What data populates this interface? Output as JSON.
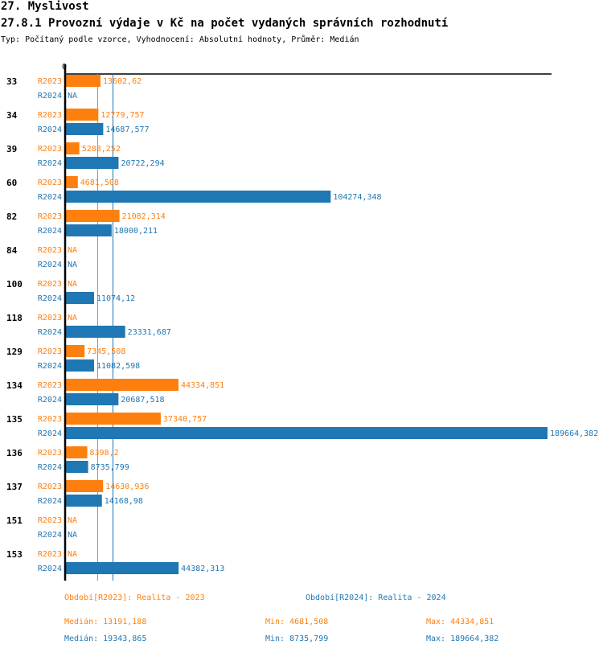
{
  "header": {
    "section_title": "27. Myslivost",
    "chart_title": "27.8.1 Provozní výdaje v Kč na počet vydaných správních rozhodnutí",
    "subtitle": "Typ: Počítaný podle vzorce, Vyhodnocení: Absolutní hodnoty, Průměr: Medián"
  },
  "colors": {
    "R2023": "#ff7f0e",
    "R2024": "#1f77b4",
    "axis": "#000000"
  },
  "chart_data": {
    "type": "bar",
    "orientation": "horizontal",
    "title": "27.8.1 Provozní výdaje v Kč na počet vydaných správních rozhodnutí",
    "xlabel": "",
    "ylabel": "",
    "xlim": [
      0,
      189664.382
    ],
    "zero_label": "0",
    "grid": false,
    "categories": [
      "33",
      "34",
      "39",
      "60",
      "82",
      "84",
      "100",
      "118",
      "129",
      "134",
      "135",
      "136",
      "137",
      "151",
      "153"
    ],
    "series": [
      {
        "name": "R2023",
        "values": [
          13602.62,
          12779.757,
          5288.252,
          4681.508,
          21082.314,
          null,
          null,
          null,
          7345.508,
          44334.851,
          37340.757,
          8398.2,
          14630.936,
          null,
          null
        ],
        "labels": [
          "13602,62",
          "12779,757",
          "5288,252",
          "4681,508",
          "21082,314",
          "NA",
          "NA",
          "NA",
          "7345,508",
          "44334,851",
          "37340,757",
          "8398,2",
          "14630,936",
          "NA",
          "NA"
        ],
        "median": 13191.188
      },
      {
        "name": "R2024",
        "values": [
          null,
          14687.577,
          20722.294,
          104274.348,
          18000.211,
          null,
          11074.12,
          23331.687,
          11082.598,
          20687.518,
          189664.382,
          8735.799,
          14168.98,
          null,
          44382.313
        ],
        "labels": [
          "NA",
          "14687,577",
          "20722,294",
          "104274,348",
          "18000,211",
          "NA",
          "11074,12",
          "23331,687",
          "11082,598",
          "20687,518",
          "189664,382",
          "8735,799",
          "14168,98",
          "NA",
          "44382,313"
        ],
        "median": 19343.865
      }
    ],
    "reference_lines": [
      {
        "series": "R2023",
        "type": "median",
        "value": 13191.188
      },
      {
        "series": "R2024",
        "type": "median",
        "value": 19343.865
      }
    ]
  },
  "legend": {
    "R2023": "Období[R2023]: Realita - 2023",
    "R2024": "Období[R2024]: Realita - 2024"
  },
  "stats": {
    "R2023": {
      "median": "Medián: 13191,188",
      "min": "Min: 4681,508",
      "max": "Max: 44334,851"
    },
    "R2024": {
      "median": "Medián: 19343,865",
      "min": "Min: 8735,799",
      "max": "Max: 189664,382"
    }
  }
}
